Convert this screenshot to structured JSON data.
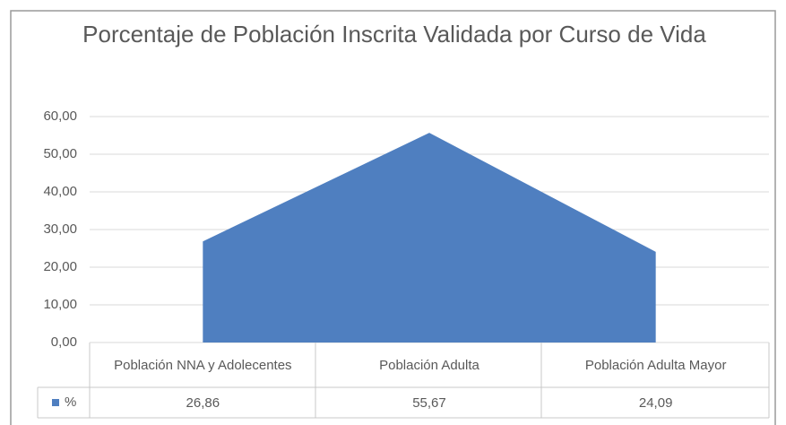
{
  "chart_data": {
    "type": "area",
    "title": "Porcentaje de Población Inscrita Validada por Curso de Vida",
    "categories": [
      "Población NNA y Adolecentes",
      "Población Adulta",
      "Población Adulta Mayor"
    ],
    "series": [
      {
        "name": "%",
        "color": "#4f7fc0",
        "values": [
          26.86,
          55.67,
          24.09
        ],
        "value_labels": [
          "26,86",
          "55,67",
          "24,09"
        ]
      }
    ],
    "ylim": [
      0,
      60
    ],
    "yticks": [
      {
        "value": 0,
        "label": "0,00"
      },
      {
        "value": 10,
        "label": "10,00"
      },
      {
        "value": 20,
        "label": "20,00"
      },
      {
        "value": 30,
        "label": "30,00"
      },
      {
        "value": 40,
        "label": "40,00"
      },
      {
        "value": 50,
        "label": "50,00"
      },
      {
        "value": 60,
        "label": "60,00"
      }
    ],
    "grid": true
  }
}
